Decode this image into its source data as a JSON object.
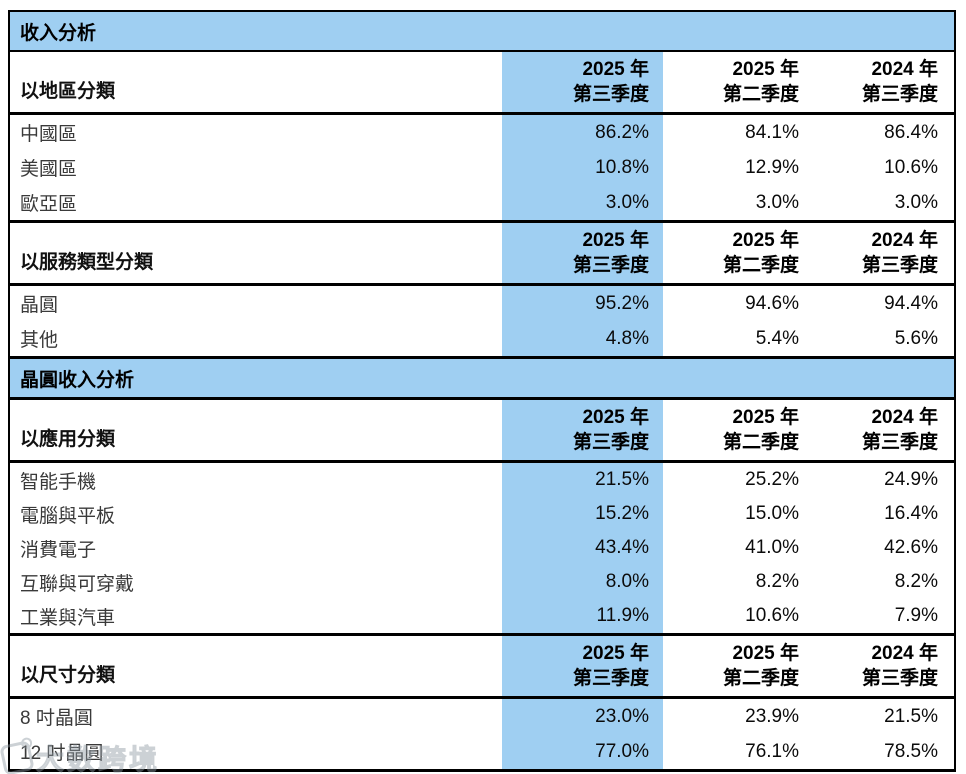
{
  "colors": {
    "highlight_blue": "#9FCFF2",
    "border_black": "#000000"
  },
  "watermark": {
    "text": "大数跨境",
    "logo": "daishu-logo-icon"
  },
  "table": {
    "title1": "收入分析",
    "title2": "晶圓收入分析",
    "sections": [
      {
        "label": "以地區分類",
        "col_headers": [
          {
            "line1": "2025 年",
            "line2": "第三季度"
          },
          {
            "line1": "2025 年",
            "line2": "第二季度"
          },
          {
            "line1": "2024 年",
            "line2": "第三季度"
          }
        ],
        "rows": [
          {
            "label": "中國區",
            "v1": "86.2%",
            "v2": "84.1%",
            "v3": "86.4%"
          },
          {
            "label": "美國區",
            "v1": "10.8%",
            "v2": "12.9%",
            "v3": "10.6%"
          },
          {
            "label": "歐亞區",
            "v1": "3.0%",
            "v2": "3.0%",
            "v3": "3.0%"
          }
        ]
      },
      {
        "label": "以服務類型分類",
        "col_headers": [
          {
            "line1": "2025 年",
            "line2": "第三季度"
          },
          {
            "line1": "2025 年",
            "line2": "第二季度"
          },
          {
            "line1": "2024 年",
            "line2": "第三季度"
          }
        ],
        "rows": [
          {
            "label": "晶圓",
            "v1": "95.2%",
            "v2": "94.6%",
            "v3": "94.4%"
          },
          {
            "label": "其他",
            "v1": "4.8%",
            "v2": "5.4%",
            "v3": "5.6%"
          }
        ]
      },
      {
        "label": "以應用分類",
        "col_headers": [
          {
            "line1": "2025 年",
            "line2": "第三季度"
          },
          {
            "line1": "2025 年",
            "line2": "第二季度"
          },
          {
            "line1": "2024 年",
            "line2": "第三季度"
          }
        ],
        "rows": [
          {
            "label": "智能手機",
            "v1": "21.5%",
            "v2": "25.2%",
            "v3": "24.9%"
          },
          {
            "label": "電腦與平板",
            "v1": "15.2%",
            "v2": "15.0%",
            "v3": "16.4%"
          },
          {
            "label": "消費電子",
            "v1": "43.4%",
            "v2": "41.0%",
            "v3": "42.6%"
          },
          {
            "label": "互聯與可穿戴",
            "v1": "8.0%",
            "v2": "8.2%",
            "v3": "8.2%"
          },
          {
            "label": "工業與汽車",
            "v1": "11.9%",
            "v2": "10.6%",
            "v3": "7.9%"
          }
        ]
      },
      {
        "label": "以尺寸分類",
        "col_headers": [
          {
            "line1": "2025 年",
            "line2": "第三季度"
          },
          {
            "line1": "2025 年",
            "line2": "第二季度"
          },
          {
            "line1": "2024 年",
            "line2": "第三季度"
          }
        ],
        "rows": [
          {
            "label": "8 吋晶圓",
            "v1": "23.0%",
            "v2": "23.9%",
            "v3": "21.5%"
          },
          {
            "label": "12 吋晶圓",
            "v1": "77.0%",
            "v2": "76.1%",
            "v3": "78.5%"
          }
        ]
      }
    ]
  }
}
